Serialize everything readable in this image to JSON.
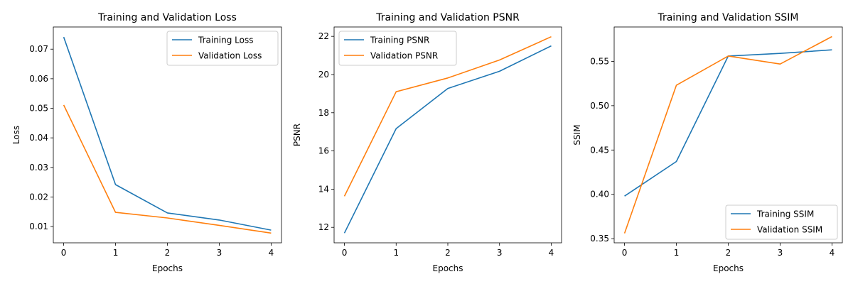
{
  "chart_data": [
    {
      "type": "line",
      "title": "Training and Validation Loss",
      "xlabel": "Epochs",
      "ylabel": "Loss",
      "x": [
        0,
        1,
        2,
        3,
        4
      ],
      "xticks": [
        "0",
        "1",
        "2",
        "3",
        "4"
      ],
      "yticks": [
        "0.01",
        "0.02",
        "0.03",
        "0.04",
        "0.05",
        "0.06",
        "0.07"
      ],
      "xlim": [
        -0.2,
        4.2
      ],
      "ylim": [
        0.0045,
        0.0775
      ],
      "legend_position": "upper right",
      "grid": false,
      "series": [
        {
          "name": "Training Loss",
          "color": "#1f77b4",
          "values": [
            0.0741,
            0.0242,
            0.0146,
            0.0122,
            0.0088
          ]
        },
        {
          "name": "Validation Loss",
          "color": "#ff7f0e",
          "values": [
            0.0511,
            0.0148,
            0.0129,
            0.0104,
            0.0078
          ]
        }
      ]
    },
    {
      "type": "line",
      "title": "Training and Validation PSNR",
      "xlabel": "Epochs",
      "ylabel": "PSNR",
      "x": [
        0,
        1,
        2,
        3,
        4
      ],
      "xticks": [
        "0",
        "1",
        "2",
        "3",
        "4"
      ],
      "yticks": [
        "12",
        "14",
        "16",
        "18",
        "20",
        "22"
      ],
      "xlim": [
        -0.2,
        4.2
      ],
      "ylim": [
        11.19,
        22.49
      ],
      "legend_position": "upper left",
      "grid": false,
      "series": [
        {
          "name": "Training PSNR",
          "color": "#1f77b4",
          "values": [
            11.7,
            17.17,
            19.27,
            20.17,
            21.5
          ]
        },
        {
          "name": "Validation PSNR",
          "color": "#ff7f0e",
          "values": [
            13.63,
            19.1,
            19.82,
            20.76,
            21.98
          ]
        }
      ]
    },
    {
      "type": "line",
      "title": "Training and Validation SSIM",
      "xlabel": "Epochs",
      "ylabel": "SSIM",
      "x": [
        0,
        1,
        2,
        3,
        4
      ],
      "xticks": [
        "0",
        "1",
        "2",
        "3",
        "4"
      ],
      "yticks": [
        "0.35",
        "0.40",
        "0.45",
        "0.50",
        "0.55"
      ],
      "xlim": [
        -0.2,
        4.2
      ],
      "ylim": [
        0.3453,
        0.5888
      ],
      "legend_position": "lower right",
      "grid": false,
      "series": [
        {
          "name": "Training SSIM",
          "color": "#1f77b4",
          "values": [
            0.398,
            0.437,
            0.556,
            0.559,
            0.563
          ]
        },
        {
          "name": "Validation SSIM",
          "color": "#ff7f0e",
          "values": [
            0.356,
            0.523,
            0.556,
            0.547,
            0.578
          ]
        }
      ]
    }
  ]
}
